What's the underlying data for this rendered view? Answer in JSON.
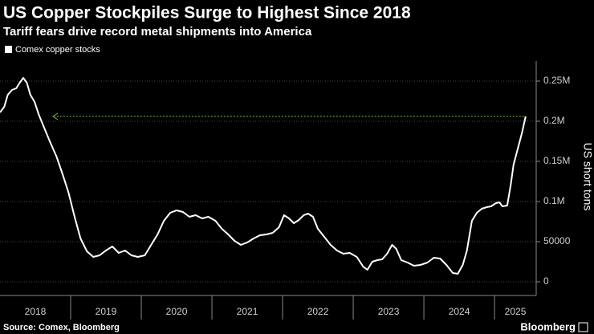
{
  "chart_data": {
    "type": "line",
    "title": "US Copper Stockpiles Surge to Highest Since 2018",
    "subtitle": "Tariff fears drive record metal shipments into America",
    "y_axis_label": "US short tons",
    "source": "Source: Comex, Bloomberg",
    "brand": "Bloomberg",
    "x": [
      2018.0,
      2018.06,
      2018.11,
      2018.17,
      2018.23,
      2018.28,
      2018.33,
      2018.38,
      2018.43,
      2018.49,
      2018.55,
      2018.63,
      2018.7,
      2018.8,
      2018.89,
      2018.97,
      2019.05,
      2019.14,
      2019.23,
      2019.32,
      2019.41,
      2019.5,
      2019.59,
      2019.68,
      2019.77,
      2019.86,
      2019.95,
      2020.05,
      2020.14,
      2020.23,
      2020.32,
      2020.41,
      2020.5,
      2020.59,
      2020.68,
      2020.77,
      2020.86,
      2020.95,
      2021.05,
      2021.14,
      2021.23,
      2021.32,
      2021.41,
      2021.5,
      2021.59,
      2021.68,
      2021.77,
      2021.86,
      2021.95,
      2022.02,
      2022.09,
      2022.16,
      2022.23,
      2022.3,
      2022.36,
      2022.43,
      2022.5,
      2022.59,
      2022.68,
      2022.77,
      2022.86,
      2022.95,
      2023.05,
      2023.14,
      2023.2,
      2023.27,
      2023.34,
      2023.41,
      2023.48,
      2023.55,
      2023.61,
      2023.68,
      2023.77,
      2023.86,
      2023.95,
      2024.05,
      2024.14,
      2024.23,
      2024.32,
      2024.41,
      2024.48,
      2024.55,
      2024.61,
      2024.68,
      2024.75,
      2024.82,
      2024.89,
      2024.95,
      2025.02,
      2025.07,
      2025.11,
      2025.18,
      2025.23,
      2025.27,
      2025.33,
      2025.39,
      2025.44
    ],
    "series": [
      {
        "name": "Comex copper stocks",
        "color": "#ffffff",
        "values": [
          211000,
          218000,
          233000,
          239000,
          241000,
          248000,
          254000,
          248000,
          233000,
          224000,
          208000,
          191000,
          176000,
          156000,
          133000,
          111000,
          83000,
          54000,
          38000,
          31000,
          33000,
          39000,
          44000,
          36000,
          39000,
          33000,
          31000,
          33000,
          46000,
          59000,
          76000,
          86000,
          89000,
          87000,
          81000,
          83000,
          79000,
          81000,
          76000,
          66000,
          59000,
          51000,
          46000,
          49000,
          54000,
          58000,
          59000,
          61000,
          68000,
          83000,
          79000,
          73000,
          77000,
          83000,
          85000,
          81000,
          66000,
          56000,
          46000,
          39000,
          35000,
          36000,
          31000,
          19000,
          15000,
          25000,
          27000,
          28000,
          35000,
          46000,
          41000,
          27000,
          24000,
          20000,
          21000,
          24000,
          30000,
          29000,
          21000,
          11000,
          10000,
          21000,
          39000,
          76000,
          86000,
          91000,
          93000,
          94000,
          98000,
          99000,
          94000,
          95000,
          121000,
          146000,
          166000,
          186000,
          206000
        ]
      }
    ],
    "xlim": [
      2018,
      2025.59
    ],
    "xticks": [
      2019,
      2020,
      2021,
      2022,
      2023,
      2024,
      2025
    ],
    "x_labels": [
      2018,
      2019,
      2020,
      2021,
      2022,
      2023,
      2024,
      2025
    ],
    "ylim": [
      -17000,
      275000
    ],
    "yticks": [
      0,
      {
        "value": 50000,
        "label": "50000"
      },
      {
        "value": 100000,
        "label": "0.1M"
      },
      {
        "value": 150000,
        "label": "0.15M"
      },
      {
        "value": 200000,
        "label": "0.2M"
      },
      {
        "value": 250000,
        "label": "0.25M"
      }
    ],
    "grid": true,
    "annotation_color": "#7cc242"
  }
}
